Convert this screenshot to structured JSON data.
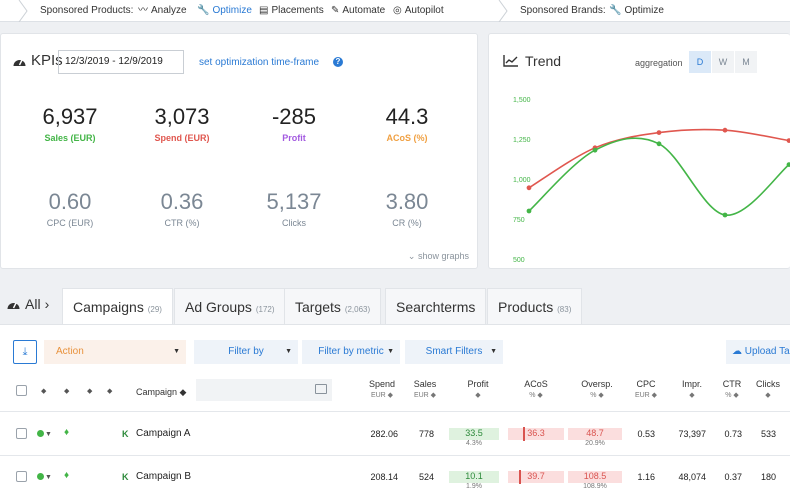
{
  "topnav": {
    "sponsored_products": "Sponsored Products:",
    "analyze": "Analyze",
    "optimize": "Optimize",
    "placements": "Placements",
    "automate": "Automate",
    "autopilot": "Autopilot",
    "sponsored_brands": "Sponsored Brands:",
    "brands_optimize": "Optimize"
  },
  "kpis": {
    "title": "KPIs",
    "date_range": "12/3/2019 - 12/9/2019",
    "set_timeframe": "set optimization time-frame",
    "help": "?",
    "items": [
      {
        "value": "6,937",
        "label": "Sales (EUR)"
      },
      {
        "value": "3,073",
        "label": "Spend (EUR)"
      },
      {
        "value": "-285",
        "label": "Profit"
      },
      {
        "value": "44.3",
        "label": "ACoS (%)"
      },
      {
        "value": "0.60",
        "label": "CPC (EUR)"
      },
      {
        "value": "0.36",
        "label": "CTR (%)"
      },
      {
        "value": "5,137",
        "label": "Clicks"
      },
      {
        "value": "3.80",
        "label": "CR (%)"
      }
    ],
    "show_graphs": "show graphs"
  },
  "colors": {
    "sales": "#43b547",
    "spend": "#e0574f",
    "profit": "#a35ae0",
    "acos": "#f0a042",
    "accent": "#2a7ad4"
  },
  "trend": {
    "title": "Trend",
    "aggregation_label": "aggregation",
    "buttons": [
      "D",
      "W",
      "M"
    ],
    "selected": "D"
  },
  "chart_data": {
    "type": "line",
    "title": "Trend",
    "ylim": [
      500,
      1500
    ],
    "yticks": [
      "1,500",
      "1,250",
      "1,000",
      "750",
      "500"
    ],
    "grid": false,
    "x": [
      1,
      2,
      3,
      4,
      5
    ],
    "series": [
      {
        "color": "#e0574f",
        "values": [
          945,
          1195,
          1290,
          1305,
          1240
        ]
      },
      {
        "color": "#43b547",
        "values": [
          800,
          1180,
          1220,
          775,
          1090
        ]
      }
    ]
  },
  "tabs": {
    "all": "All",
    "items": [
      {
        "label": "Campaigns",
        "count": "(29)"
      },
      {
        "label": "Ad Groups",
        "count": "(172)"
      },
      {
        "label": "Targets",
        "count": "(2,063)"
      },
      {
        "label": "Searchterms",
        "count": ""
      },
      {
        "label": "Products",
        "count": "(83)"
      }
    ]
  },
  "filters": {
    "action": "Action",
    "filter_by": "Filter by",
    "filter_by_metric": "Filter by metric",
    "smart_filters": "Smart Filters",
    "upload": "Upload Ta"
  },
  "table": {
    "columns": {
      "campaign": "Campaign",
      "spend": "Spend",
      "spend_unit": "EUR",
      "sales": "Sales",
      "sales_unit": "EUR",
      "profit": "Profit",
      "acos": "ACoS",
      "acos_unit": "%",
      "oversp": "Oversp.",
      "oversp_unit": "%",
      "cpc": "CPC",
      "cpc_unit": "EUR",
      "impr": "Impr.",
      "ctr": "CTR",
      "ctr_unit": "%",
      "clicks": "Clicks"
    },
    "rows": [
      {
        "badge": "K",
        "name": "Campaign A",
        "spend": "282.06",
        "sales": "778",
        "profit": "33.5",
        "profit_pct": "4.3%",
        "acos": "36.3",
        "oversp": "48.7",
        "oversp_pct": "20.9%",
        "cpc": "0.53",
        "impr": "73,397",
        "ctr": "0.73",
        "clicks": "533"
      },
      {
        "badge": "K",
        "name": "Campaign B",
        "spend": "208.14",
        "sales": "524",
        "profit": "10.1",
        "profit_pct": "1.9%",
        "acos": "39.7",
        "oversp": "108.5",
        "oversp_pct": "108.9%",
        "cpc": "1.16",
        "impr": "48,074",
        "ctr": "0.37",
        "clicks": "180"
      }
    ]
  }
}
